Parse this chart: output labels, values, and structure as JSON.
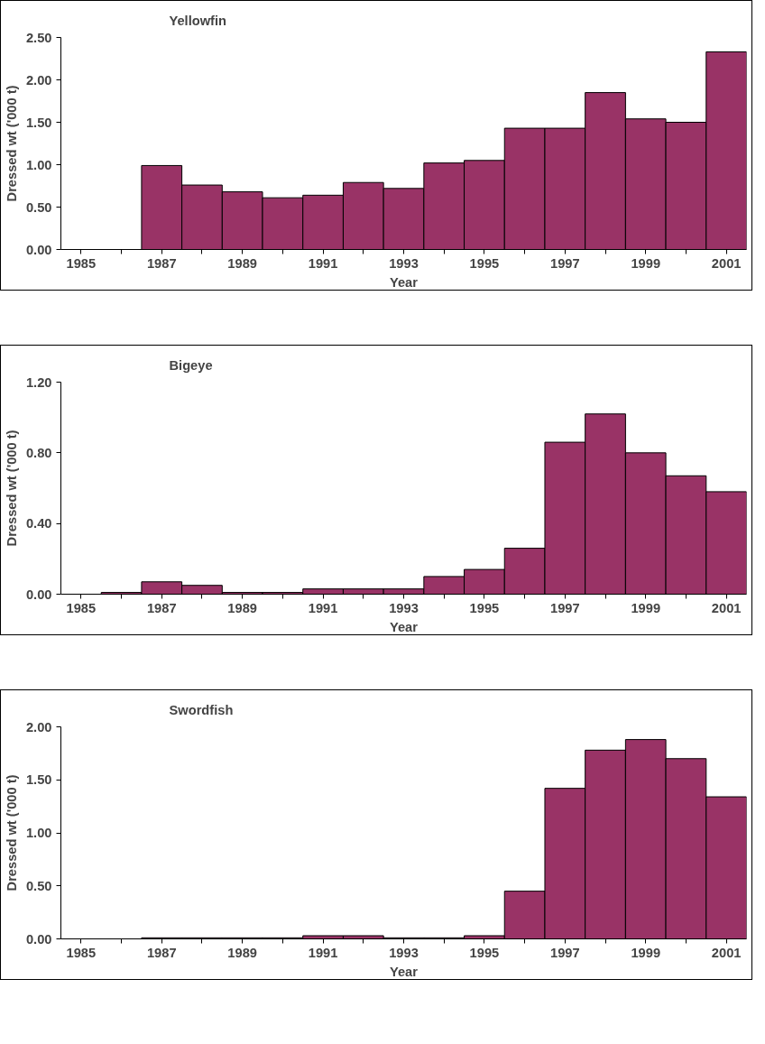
{
  "chart_data": [
    {
      "type": "bar",
      "title": "Yellowfin",
      "xlabel": "Year",
      "ylabel": "Dressed wt ('000 t)",
      "categories": [
        "1985",
        null,
        "1987",
        null,
        "1989",
        null,
        "1991",
        null,
        "1993",
        null,
        "1995",
        null,
        "1997",
        null,
        "1999",
        null,
        "2001"
      ],
      "series": [
        {
          "color": "#993366",
          "values": [
            0,
            0,
            0.99,
            0.76,
            0.68,
            0.61,
            0.64,
            0.79,
            0.72,
            1.02,
            1.05,
            1.43,
            1.43,
            1.85,
            1.54,
            1.5,
            2.33
          ]
        }
      ],
      "ylim": [
        0,
        2.5
      ],
      "yticks": [
        {
          "value": 0,
          "label": "0.00"
        },
        {
          "value": 0.5,
          "label": "0.50"
        },
        {
          "value": 1,
          "label": "1.00"
        },
        {
          "value": 1.5,
          "label": "1.50"
        },
        {
          "value": 2,
          "label": "2.00"
        },
        {
          "value": 2.5,
          "label": "2.50"
        }
      ],
      "grid": false
    },
    {
      "type": "bar",
      "title": "Bigeye",
      "xlabel": "Year",
      "ylabel": "Dressed wt ('000 t)",
      "categories": [
        "1985",
        null,
        "1987",
        null,
        "1989",
        null,
        "1991",
        null,
        "1993",
        null,
        "1995",
        null,
        "1997",
        null,
        "1999",
        null,
        "2001"
      ],
      "series": [
        {
          "color": "#993366",
          "values": [
            0,
            0.01,
            0.07,
            0.05,
            0.01,
            0.01,
            0.03,
            0.03,
            0.03,
            0.1,
            0.14,
            0.26,
            0.86,
            1.02,
            0.8,
            0.67,
            0.58
          ]
        }
      ],
      "ylim": [
        0,
        1.2
      ],
      "yticks": [
        {
          "value": 0,
          "label": "0.00"
        },
        {
          "value": 0.4,
          "label": "0.40"
        },
        {
          "value": 0.8,
          "label": "0.80"
        },
        {
          "value": 1.2,
          "label": "1.20"
        }
      ],
      "grid": false
    },
    {
      "type": "bar",
      "title": "Swordfish",
      "xlabel": "Year",
      "ylabel": "Dressed wt ('000 t)",
      "categories": [
        "1985",
        null,
        "1987",
        null,
        "1989",
        null,
        "1991",
        null,
        "1993",
        null,
        "1995",
        null,
        "1997",
        null,
        "1999",
        null,
        "2001"
      ],
      "series": [
        {
          "color": "#993366",
          "values": [
            0,
            0,
            0.01,
            0.01,
            0.01,
            0.01,
            0.03,
            0.03,
            0.01,
            0.01,
            0.03,
            0.45,
            1.42,
            1.78,
            1.88,
            1.7,
            1.34
          ]
        }
      ],
      "ylim": [
        0,
        2
      ],
      "yticks": [
        {
          "value": 0,
          "label": "0.00"
        },
        {
          "value": 0.5,
          "label": "0.50"
        },
        {
          "value": 1,
          "label": "1.00"
        },
        {
          "value": 1.5,
          "label": "1.50"
        },
        {
          "value": 2,
          "label": "2.00"
        }
      ],
      "grid": false
    }
  ]
}
